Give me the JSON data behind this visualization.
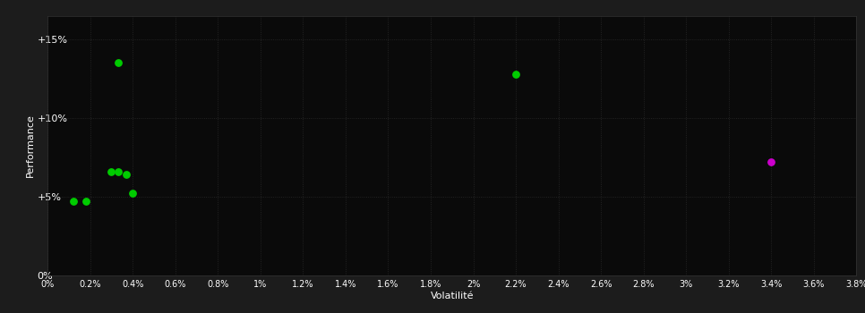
{
  "background_color": "#1c1c1c",
  "plot_bg_color": "#0a0a0a",
  "grid_color": "#2a2a2a",
  "text_color": "#ffffff",
  "xlabel": "Volatilité",
  "ylabel": "Performance",
  "xlim": [
    0.0,
    0.038
  ],
  "ylim": [
    0.0,
    0.165
  ],
  "xticks": [
    0.0,
    0.002,
    0.004,
    0.006,
    0.008,
    0.01,
    0.012,
    0.014,
    0.016,
    0.018,
    0.02,
    0.022,
    0.024,
    0.026,
    0.028,
    0.03,
    0.032,
    0.034,
    0.036,
    0.038
  ],
  "xtick_labels": [
    "0%",
    "0.2%",
    "0.4%",
    "0.6%",
    "0.8%",
    "1%",
    "1.2%",
    "1.4%",
    "1.6%",
    "1.8%",
    "2%",
    "2.2%",
    "2.4%",
    "2.6%",
    "2.8%",
    "3%",
    "3.2%",
    "3.4%",
    "3.6%",
    "3.8%"
  ],
  "yticks": [
    0.0,
    0.05,
    0.1,
    0.15
  ],
  "ytick_labels": [
    "0%",
    "+5%",
    "+10%",
    "+15%"
  ],
  "green_points": [
    [
      0.0033,
      0.135
    ],
    [
      0.022,
      0.128
    ],
    [
      0.0012,
      0.047
    ],
    [
      0.0018,
      0.047
    ],
    [
      0.003,
      0.066
    ],
    [
      0.0033,
      0.066
    ],
    [
      0.0037,
      0.064
    ],
    [
      0.004,
      0.052
    ]
  ],
  "magenta_points": [
    [
      0.034,
      0.072
    ]
  ],
  "point_color_green": "#00cc00",
  "point_color_magenta": "#cc00cc",
  "marker_size": 28
}
